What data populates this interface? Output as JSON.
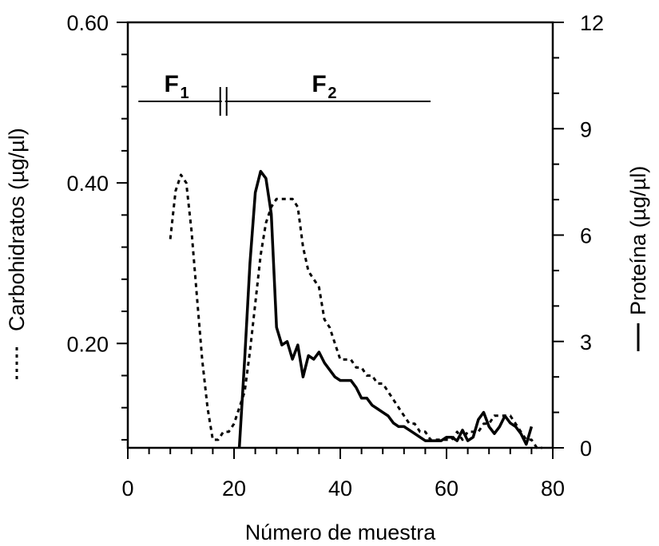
{
  "chart_data": {
    "type": "line",
    "xlabel": "Número de muestra",
    "ylabel_left": "Carbohidratos (µg/µl)",
    "ylabel_right": "Proteína (µg/µl)",
    "x_range": [
      0,
      80
    ],
    "y_left_range": [
      0.07,
      0.6
    ],
    "y_right_range": [
      0,
      12
    ],
    "x_ticks": [
      "0",
      "20",
      "40",
      "60",
      "80"
    ],
    "y_left_ticks": [
      "0.20",
      "0.40",
      "0.60"
    ],
    "y_right_ticks": [
      "0",
      "3",
      "6",
      "9",
      "12"
    ],
    "series": [
      {
        "axis": "left",
        "style": "dotted",
        "x": [
          8,
          9,
          10,
          11,
          12,
          13,
          14,
          15,
          16,
          17,
          18,
          19,
          20,
          21,
          22,
          23,
          24,
          25,
          26,
          27,
          28,
          29,
          30,
          31,
          32,
          33,
          34,
          35,
          36,
          37,
          38,
          39,
          40,
          41,
          42,
          43,
          44,
          45,
          46,
          47,
          48,
          49,
          50,
          51,
          52,
          53,
          54,
          55,
          56,
          57,
          58,
          59,
          60,
          61,
          62,
          63,
          64,
          65,
          66,
          67,
          68,
          69,
          70,
          71,
          72,
          73,
          74,
          75,
          76,
          77,
          78
        ],
        "values": [
          0.33,
          0.39,
          0.41,
          0.4,
          0.34,
          0.26,
          0.18,
          0.12,
          0.08,
          0.08,
          0.09,
          0.09,
          0.1,
          0.12,
          0.14,
          0.19,
          0.25,
          0.31,
          0.35,
          0.37,
          0.38,
          0.38,
          0.38,
          0.38,
          0.37,
          0.32,
          0.29,
          0.28,
          0.27,
          0.23,
          0.22,
          0.2,
          0.18,
          0.18,
          0.18,
          0.17,
          0.17,
          0.16,
          0.16,
          0.15,
          0.15,
          0.14,
          0.13,
          0.12,
          0.11,
          0.1,
          0.1,
          0.09,
          0.09,
          0.08,
          0.08,
          0.08,
          0.08,
          0.08,
          0.09,
          0.08,
          0.09,
          0.09,
          0.09,
          0.1,
          0.1,
          0.11,
          0.11,
          0.11,
          0.11,
          0.1,
          0.09,
          0.08,
          0.08,
          0.07,
          0.07
        ]
      },
      {
        "axis": "right",
        "style": "solid",
        "x": [
          21,
          22,
          23,
          24,
          25,
          26,
          27,
          28,
          29,
          30,
          31,
          32,
          33,
          34,
          35,
          36,
          37,
          38,
          39,
          40,
          41,
          42,
          43,
          44,
          45,
          46,
          47,
          48,
          49,
          50,
          51,
          52,
          53,
          54,
          55,
          56,
          57,
          58,
          59,
          60,
          61,
          62,
          63,
          64,
          65,
          66,
          67,
          68,
          69,
          70,
          71,
          72,
          73,
          74,
          75,
          76
        ],
        "values": [
          0,
          2.5,
          5.2,
          7.2,
          7.8,
          7.6,
          6.6,
          3.4,
          2.9,
          3.0,
          2.5,
          2.9,
          2.0,
          2.6,
          2.5,
          2.7,
          2.4,
          2.2,
          2.0,
          1.9,
          1.9,
          1.9,
          1.7,
          1.4,
          1.4,
          1.2,
          1.1,
          1.0,
          0.9,
          0.7,
          0.6,
          0.6,
          0.5,
          0.4,
          0.3,
          0.2,
          0.2,
          0.2,
          0.2,
          0.3,
          0.3,
          0.2,
          0.5,
          0.2,
          0.3,
          0.8,
          1.0,
          0.6,
          0.4,
          0.6,
          0.9,
          0.7,
          0.6,
          0.4,
          0.1,
          0.6
        ]
      }
    ],
    "annotations": [
      {
        "label": "F",
        "sub": "1",
        "x_start": 2,
        "x_end": 18
      },
      {
        "label": "F",
        "sub": "2",
        "x_start": 18,
        "x_end": 57
      }
    ]
  }
}
